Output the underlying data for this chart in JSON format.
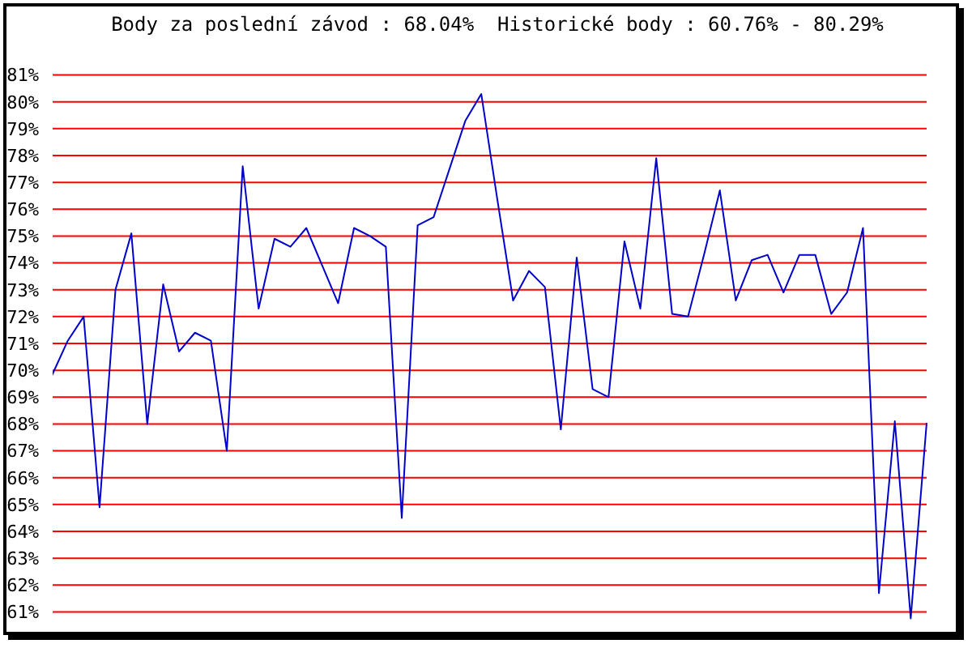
{
  "chart_data": {
    "type": "line",
    "title": "Body za poslední závod : 68.04%  Historické body : 60.76% - 80.29%",
    "categories": [
      null,
      null,
      null,
      null,
      null,
      null,
      null,
      null,
      null,
      null,
      null,
      null,
      null,
      null,
      null,
      null,
      null,
      null,
      null,
      null,
      null,
      null,
      null,
      null,
      null,
      null,
      null,
      null,
      null,
      null,
      null,
      null,
      null,
      null,
      null,
      null,
      null,
      null,
      null,
      null,
      null,
      null,
      null,
      null,
      null,
      null,
      null,
      null,
      null,
      null,
      null,
      null,
      null,
      null,
      null,
      null
    ],
    "series": [
      {
        "color": "#0000cc",
        "values": [
          69.8,
          71.1,
          72.0,
          64.9,
          73.0,
          75.1,
          68.0,
          73.2,
          70.7,
          71.4,
          71.1,
          67.0,
          77.6,
          72.3,
          74.9,
          74.6,
          75.3,
          73.9,
          72.5,
          75.3,
          75.0,
          74.6,
          64.5,
          75.4,
          75.7,
          77.5,
          79.3,
          80.29,
          76.4,
          72.6,
          73.7,
          73.1,
          67.8,
          74.2,
          69.3,
          69.0,
          74.8,
          72.3,
          77.9,
          72.1,
          72.0,
          74.3,
          76.7,
          72.6,
          74.1,
          74.3,
          72.9,
          74.3,
          74.3,
          72.1,
          72.9,
          75.3,
          61.7,
          68.1,
          60.76,
          68.04
        ]
      }
    ],
    "ylim": [
      60.5,
      81.5
    ],
    "yticks": [
      {
        "value": 61,
        "label": "61%"
      },
      {
        "value": 62,
        "label": "62%"
      },
      {
        "value": 63,
        "label": "63%"
      },
      {
        "value": 64,
        "label": "64%"
      },
      {
        "value": 65,
        "label": "65%"
      },
      {
        "value": 66,
        "label": "66%"
      },
      {
        "value": 67,
        "label": "67%"
      },
      {
        "value": 68,
        "label": "68%"
      },
      {
        "value": 69,
        "label": "69%"
      },
      {
        "value": 70,
        "label": "70%"
      },
      {
        "value": 71,
        "label": "71%"
      },
      {
        "value": 72,
        "label": "72%"
      },
      {
        "value": 73,
        "label": "73%"
      },
      {
        "value": 74,
        "label": "74%"
      },
      {
        "value": 75,
        "label": "75%"
      },
      {
        "value": 76,
        "label": "76%"
      },
      {
        "value": 77,
        "label": "77%"
      },
      {
        "value": 78,
        "label": "78%"
      },
      {
        "value": 79,
        "label": "79%"
      },
      {
        "value": 80,
        "label": "80%"
      },
      {
        "value": 81,
        "label": "81%"
      }
    ],
    "tick_labels": "y",
    "grid": "y",
    "marker": "none",
    "line_style": "solid"
  }
}
